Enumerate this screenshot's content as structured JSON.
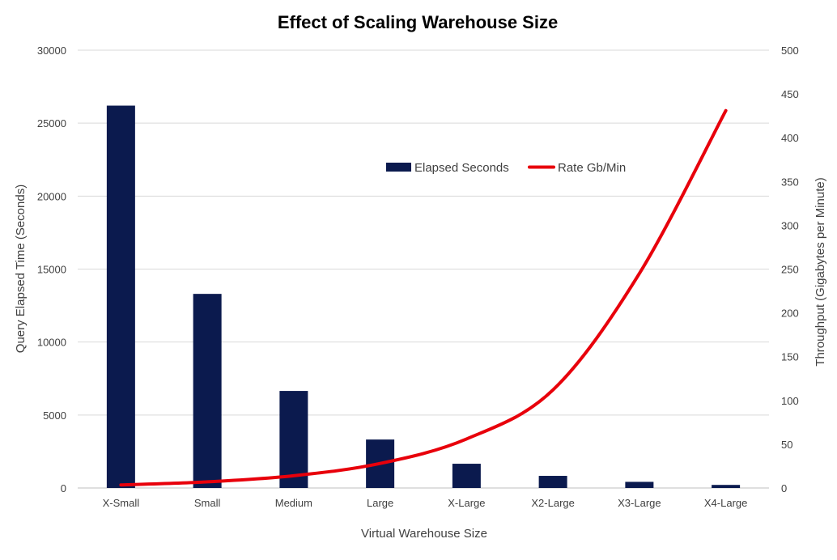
{
  "chart_data": {
    "type": "bar",
    "title": "Effect of Scaling Warehouse Size",
    "xlabel": "Virtual Warehouse Size",
    "ylabel": "Query Elapsed Time (Seconds)",
    "y2label": "Throughput (Gigabytes per Minute)",
    "categories": [
      "X-Small",
      "Small",
      "Medium",
      "Large",
      "X-Large",
      "X2-Large",
      "X3-Large",
      "X4-Large"
    ],
    "ylim": [
      0,
      30000
    ],
    "yticks": [
      0,
      5000,
      10000,
      15000,
      20000,
      25000,
      30000
    ],
    "y2lim": [
      0,
      500
    ],
    "y2ticks": [
      0,
      50,
      100,
      150,
      200,
      250,
      300,
      350,
      400,
      450,
      500
    ],
    "grid": true,
    "legend_position": "top-right",
    "series": [
      {
        "name": "Elapsed Seconds",
        "type": "bar",
        "axis": "left",
        "color": "#0b1a4e",
        "values": [
          26200,
          13300,
          6650,
          3320,
          1660,
          830,
          420,
          210
        ]
      },
      {
        "name": "Rate Gb/Min",
        "type": "line",
        "axis": "right",
        "color": "#e8000b",
        "values": [
          3.5,
          7,
          14,
          28,
          56,
          112,
          245,
          431
        ]
      }
    ]
  }
}
